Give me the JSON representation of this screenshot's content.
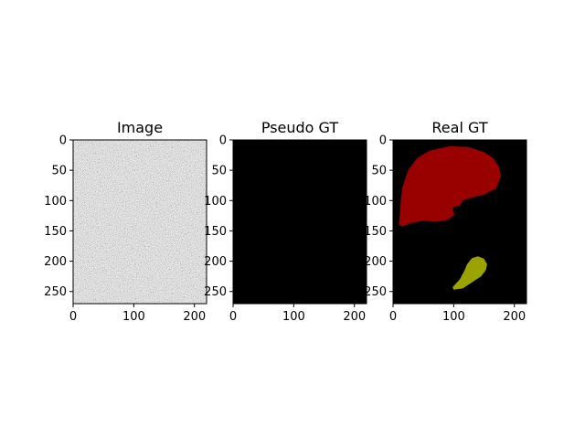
{
  "chart_data": [
    {
      "type": "heatmap",
      "title": "Image",
      "content": "random grayscale noise",
      "image_shape": [
        270,
        220
      ],
      "xlim": [
        0,
        220
      ],
      "ylim": [
        270,
        0
      ],
      "xticks": [
        0,
        100,
        200
      ],
      "yticks": [
        0,
        50,
        100,
        150,
        200,
        250
      ],
      "xlabel": "",
      "ylabel": ""
    },
    {
      "type": "heatmap",
      "title": "Pseudo GT",
      "content": "all zeros (black)",
      "image_shape": [
        270,
        220
      ],
      "xlim": [
        0,
        220
      ],
      "ylim": [
        270,
        0
      ],
      "xticks": [
        0,
        100,
        200
      ],
      "yticks": [
        0,
        50,
        100,
        150,
        200,
        250
      ],
      "xlabel": "",
      "ylabel": ""
    },
    {
      "type": "heatmap",
      "title": "Real GT",
      "content": "segmentation mask",
      "image_shape": [
        270,
        220
      ],
      "xlim": [
        0,
        220
      ],
      "ylim": [
        270,
        0
      ],
      "xticks": [
        0,
        100,
        200
      ],
      "yticks": [
        0,
        50,
        100,
        150,
        200,
        250
      ],
      "xlabel": "",
      "ylabel": "",
      "regions": [
        {
          "color": "#990000",
          "outline": [
            [
              95,
              10
            ],
            [
              125,
              12
            ],
            [
              150,
              20
            ],
            [
              165,
              30
            ],
            [
              175,
              45
            ],
            [
              178,
              60
            ],
            [
              170,
              80
            ],
            [
              150,
              90
            ],
            [
              130,
              95
            ],
            [
              115,
              100
            ],
            [
              108,
              112
            ],
            [
              100,
              125
            ],
            [
              90,
              132
            ],
            [
              70,
              135
            ],
            [
              50,
              133
            ],
            [
              30,
              137
            ],
            [
              15,
              143
            ],
            [
              10,
              140
            ],
            [
              12,
              110
            ],
            [
              15,
              80
            ],
            [
              25,
              50
            ],
            [
              40,
              30
            ],
            [
              60,
              18
            ]
          ]
        },
        {
          "color": "#000000",
          "outline": [
            [
              98,
              112
            ],
            [
              108,
              108
            ],
            [
              110,
              118
            ],
            [
              100,
              122
            ]
          ]
        },
        {
          "color": "#9aa300",
          "outline": [
            [
              130,
              195
            ],
            [
              140,
              192
            ],
            [
              150,
              196
            ],
            [
              155,
              205
            ],
            [
              153,
              215
            ],
            [
              145,
              225
            ],
            [
              130,
              235
            ],
            [
              115,
              245
            ],
            [
              100,
              247
            ],
            [
              98,
              243
            ],
            [
              110,
              230
            ],
            [
              118,
              215
            ],
            [
              122,
              205
            ]
          ]
        }
      ]
    }
  ]
}
